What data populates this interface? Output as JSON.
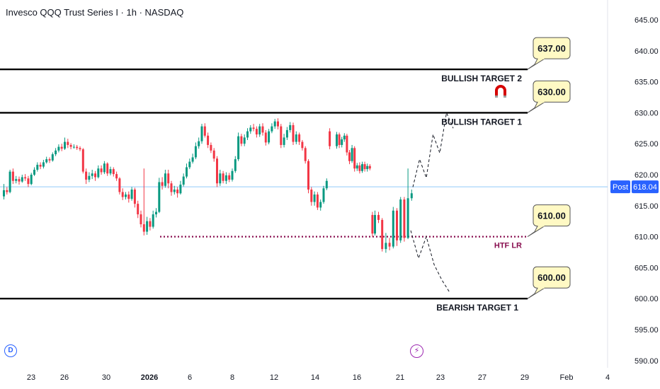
{
  "header": {
    "title": "Invesco QQQ Trust Series I · 1h · NASDAQ"
  },
  "badges": {
    "dividend": "D",
    "events": "⚡"
  },
  "price_label": {
    "tag": "Post",
    "value": "618.04"
  },
  "chart_data": {
    "type": "candlestick",
    "ylim": [
      588,
      647
    ],
    "y_ticks": [
      "645.00",
      "640.00",
      "635.00",
      "630.00",
      "625.00",
      "620.00",
      "615.00",
      "610.00",
      "605.00",
      "600.00",
      "595.00",
      "590.00"
    ],
    "x_ticks": [
      "23",
      "26",
      "30",
      "2026",
      "6",
      "8",
      "12",
      "14",
      "16",
      "21",
      "23",
      "27",
      "29",
      "Feb",
      "4"
    ],
    "last_price": 618.04,
    "levels": [
      {
        "name": "BULLISH TARGET 2",
        "value": 637.0,
        "label": "637.00",
        "style": "solid"
      },
      {
        "name": "BULLISH TARGET 1",
        "value": 630.0,
        "label": "630.00",
        "style": "solid"
      },
      {
        "name": "HTF LR",
        "value": 610.0,
        "label": "610.00",
        "style": "dotted"
      },
      {
        "name": "BEARISH TARGET 1",
        "value": 600.0,
        "label": "600.00",
        "style": "solid"
      }
    ],
    "projections": {
      "bullish_path": [
        618.0,
        622.5,
        619.5,
        626.5,
        623.5,
        630.0,
        627.5
      ],
      "bearish_path": [
        611.0,
        606.5,
        610.0,
        605.5,
        603.0,
        601.0
      ]
    },
    "candles": [
      [
        616.5,
        617.5,
        618.5,
        616.0
      ],
      [
        617.5,
        617.2,
        618.0,
        616.8
      ],
      [
        617.2,
        620.5,
        620.8,
        617.0
      ],
      [
        620.5,
        619.0,
        621.0,
        618.5
      ],
      [
        619.0,
        619.3,
        619.8,
        618.6
      ],
      [
        619.3,
        618.9,
        619.7,
        618.4
      ],
      [
        618.9,
        619.6,
        620.0,
        618.7
      ],
      [
        619.6,
        619.4,
        620.1,
        619.0
      ],
      [
        619.4,
        618.5,
        619.8,
        618.0
      ],
      [
        618.5,
        620.0,
        620.3,
        618.3
      ],
      [
        620.0,
        620.8,
        621.2,
        619.8
      ],
      [
        620.8,
        621.6,
        622.0,
        620.5
      ],
      [
        621.6,
        621.3,
        622.0,
        620.9
      ],
      [
        621.3,
        622.0,
        622.4,
        621.0
      ],
      [
        622.0,
        622.5,
        622.9,
        621.8
      ],
      [
        622.5,
        622.3,
        622.8,
        621.9
      ],
      [
        622.3,
        623.3,
        623.6,
        622.1
      ],
      [
        623.3,
        623.9,
        624.3,
        623.0
      ],
      [
        623.9,
        624.5,
        624.9,
        623.6
      ],
      [
        624.5,
        624.2,
        625.0,
        623.8
      ],
      [
        624.2,
        625.3,
        626.0,
        624.0
      ],
      [
        625.3,
        624.8,
        625.8,
        624.3
      ],
      [
        624.8,
        624.5,
        625.1,
        624.1
      ],
      [
        624.5,
        624.5,
        624.9,
        624.2
      ],
      [
        624.5,
        624.3,
        624.8,
        624.0
      ],
      [
        624.3,
        624.1,
        624.6,
        623.8
      ],
      [
        624.1,
        620.5,
        624.3,
        620.2
      ],
      [
        620.5,
        619.2,
        621.0,
        618.5
      ],
      [
        619.2,
        619.8,
        620.4,
        618.8
      ],
      [
        619.8,
        620.2,
        620.8,
        619.3
      ],
      [
        620.2,
        619.6,
        620.6,
        619.0
      ],
      [
        619.6,
        621.0,
        621.5,
        619.4
      ],
      [
        621.0,
        620.4,
        621.5,
        620.0
      ],
      [
        620.4,
        621.8,
        622.2,
        620.1
      ],
      [
        621.8,
        620.2,
        622.0,
        619.8
      ],
      [
        620.2,
        620.9,
        621.3,
        619.9
      ],
      [
        620.9,
        620.1,
        621.2,
        619.7
      ],
      [
        620.1,
        619.4,
        620.5,
        619.0
      ],
      [
        619.4,
        617.2,
        619.6,
        616.8
      ],
      [
        617.2,
        616.4,
        617.8,
        615.9
      ],
      [
        616.4,
        616.8,
        617.2,
        616.0
      ],
      [
        616.8,
        616.1,
        617.3,
        615.5
      ],
      [
        616.1,
        617.6,
        618.0,
        615.8
      ],
      [
        617.6,
        615.3,
        617.9,
        614.7
      ],
      [
        615.3,
        613.6,
        615.8,
        613.0
      ],
      [
        613.6,
        612.0,
        614.2,
        611.5
      ],
      [
        612.0,
        610.8,
        621.0,
        610.2
      ],
      [
        610.8,
        612.5,
        613.2,
        610.3
      ],
      [
        612.5,
        611.6,
        613.0,
        611.0
      ],
      [
        611.6,
        613.6,
        614.2,
        611.3
      ],
      [
        613.6,
        614.0,
        614.6,
        613.1
      ],
      [
        614.0,
        618.8,
        619.5,
        613.8
      ],
      [
        618.8,
        618.2,
        619.6,
        617.6
      ],
      [
        618.2,
        620.2,
        620.8,
        617.9
      ],
      [
        620.2,
        618.6,
        620.8,
        617.8
      ],
      [
        618.6,
        617.2,
        619.0,
        616.6
      ],
      [
        617.2,
        617.6,
        618.2,
        616.8
      ],
      [
        617.6,
        617.0,
        618.0,
        616.3
      ],
      [
        617.0,
        618.4,
        619.0,
        616.8
      ],
      [
        618.4,
        619.7,
        620.2,
        618.1
      ],
      [
        619.7,
        621.2,
        621.8,
        619.4
      ],
      [
        621.2,
        622.1,
        622.6,
        620.9
      ],
      [
        622.1,
        622.8,
        623.4,
        621.8
      ],
      [
        622.8,
        624.6,
        625.2,
        622.5
      ],
      [
        624.6,
        625.4,
        626.0,
        624.2
      ],
      [
        625.4,
        627.8,
        628.2,
        625.0
      ],
      [
        627.8,
        626.3,
        628.3,
        626.0
      ],
      [
        626.3,
        624.8,
        626.8,
        624.3
      ],
      [
        624.8,
        623.9,
        625.2,
        623.5
      ],
      [
        623.9,
        622.6,
        624.3,
        622.1
      ],
      [
        622.6,
        618.6,
        623.0,
        618.0
      ],
      [
        618.6,
        620.2,
        620.8,
        618.2
      ],
      [
        620.2,
        619.0,
        620.6,
        618.6
      ],
      [
        619.0,
        619.9,
        620.4,
        618.5
      ],
      [
        619.9,
        619.2,
        620.3,
        618.8
      ],
      [
        619.2,
        620.6,
        621.0,
        618.9
      ],
      [
        620.6,
        622.5,
        623.0,
        620.3
      ],
      [
        622.5,
        626.2,
        626.8,
        622.2
      ],
      [
        626.2,
        625.0,
        626.6,
        624.6
      ],
      [
        625.0,
        626.0,
        626.5,
        624.6
      ],
      [
        626.0,
        627.0,
        627.5,
        625.6
      ],
      [
        627.0,
        627.6,
        628.0,
        626.6
      ],
      [
        627.6,
        627.4,
        628.2,
        627.0
      ],
      [
        627.4,
        626.5,
        627.8,
        626.0
      ],
      [
        626.5,
        627.8,
        628.2,
        626.1
      ],
      [
        627.8,
        626.8,
        628.3,
        626.3
      ],
      [
        626.8,
        625.2,
        627.2,
        624.7
      ],
      [
        625.2,
        627.0,
        627.4,
        624.9
      ],
      [
        627.0,
        627.8,
        628.3,
        626.7
      ],
      [
        627.8,
        628.6,
        629.0,
        627.4
      ],
      [
        628.6,
        627.8,
        629.1,
        627.3
      ],
      [
        627.8,
        624.8,
        628.2,
        624.3
      ],
      [
        624.8,
        626.0,
        626.6,
        624.4
      ],
      [
        626.0,
        627.2,
        627.7,
        625.6
      ],
      [
        627.2,
        628.0,
        628.5,
        626.8
      ],
      [
        628.0,
        625.3,
        628.4,
        624.8
      ],
      [
        625.3,
        626.5,
        627.0,
        624.9
      ],
      [
        626.5,
        625.3,
        626.8,
        624.8
      ],
      [
        625.3,
        624.3,
        625.6,
        623.9
      ],
      [
        624.3,
        622.2,
        624.6,
        621.8
      ],
      [
        622.2,
        617.6,
        622.5,
        617.0
      ],
      [
        617.6,
        615.6,
        618.0,
        615.0
      ],
      [
        615.6,
        616.8,
        617.3,
        615.0
      ],
      [
        616.8,
        614.7,
        617.2,
        614.3
      ],
      [
        614.7,
        615.6,
        616.0,
        614.2
      ],
      [
        615.6,
        617.8,
        618.2,
        615.3
      ],
      [
        617.8,
        619.0,
        619.4,
        617.5
      ],
      [
        627.0,
        624.6,
        627.5,
        624.1
      ],
      [
        624.6,
        626.5,
        626.9,
        624.2
      ],
      [
        626.5,
        624.8,
        626.8,
        624.3
      ],
      [
        624.8,
        625.7,
        626.1,
        624.4
      ],
      [
        625.7,
        626.3,
        626.7,
        625.3
      ],
      [
        626.3,
        623.6,
        626.6,
        623.1
      ],
      [
        623.6,
        622.2,
        624.0,
        621.7
      ],
      [
        622.2,
        624.3,
        624.8,
        621.9
      ],
      [
        624.3,
        621.0,
        624.6,
        620.5
      ],
      [
        621.0,
        621.5,
        621.9,
        620.6
      ],
      [
        621.5,
        620.6,
        622.0,
        620.2
      ],
      [
        620.6,
        621.7,
        622.1,
        620.3
      ],
      [
        621.7,
        620.9,
        622.1,
        620.5
      ],
      [
        620.9,
        621.4,
        621.8,
        620.5
      ],
      [
        621.4,
        621.0,
        621.7,
        620.7
      ],
      [
        613.5,
        610.5,
        614.0,
        610.0
      ],
      [
        610.5,
        613.5,
        614.2,
        610.2
      ],
      [
        613.5,
        612.7,
        614.0,
        612.2
      ],
      [
        612.7,
        608.0,
        613.0,
        607.6
      ],
      [
        608.0,
        609.0,
        610.6,
        607.4
      ],
      [
        609.0,
        608.4,
        609.8,
        607.8
      ],
      [
        608.4,
        614.2,
        614.8,
        608.1
      ],
      [
        614.2,
        609.4,
        614.6,
        608.5
      ],
      [
        609.4,
        616.0,
        616.4,
        609.0
      ],
      [
        616.0,
        609.8,
        616.4,
        609.2
      ],
      [
        609.8,
        616.2,
        621.0,
        609.6
      ],
      [
        616.2,
        617.0,
        617.6,
        615.8
      ]
    ]
  }
}
